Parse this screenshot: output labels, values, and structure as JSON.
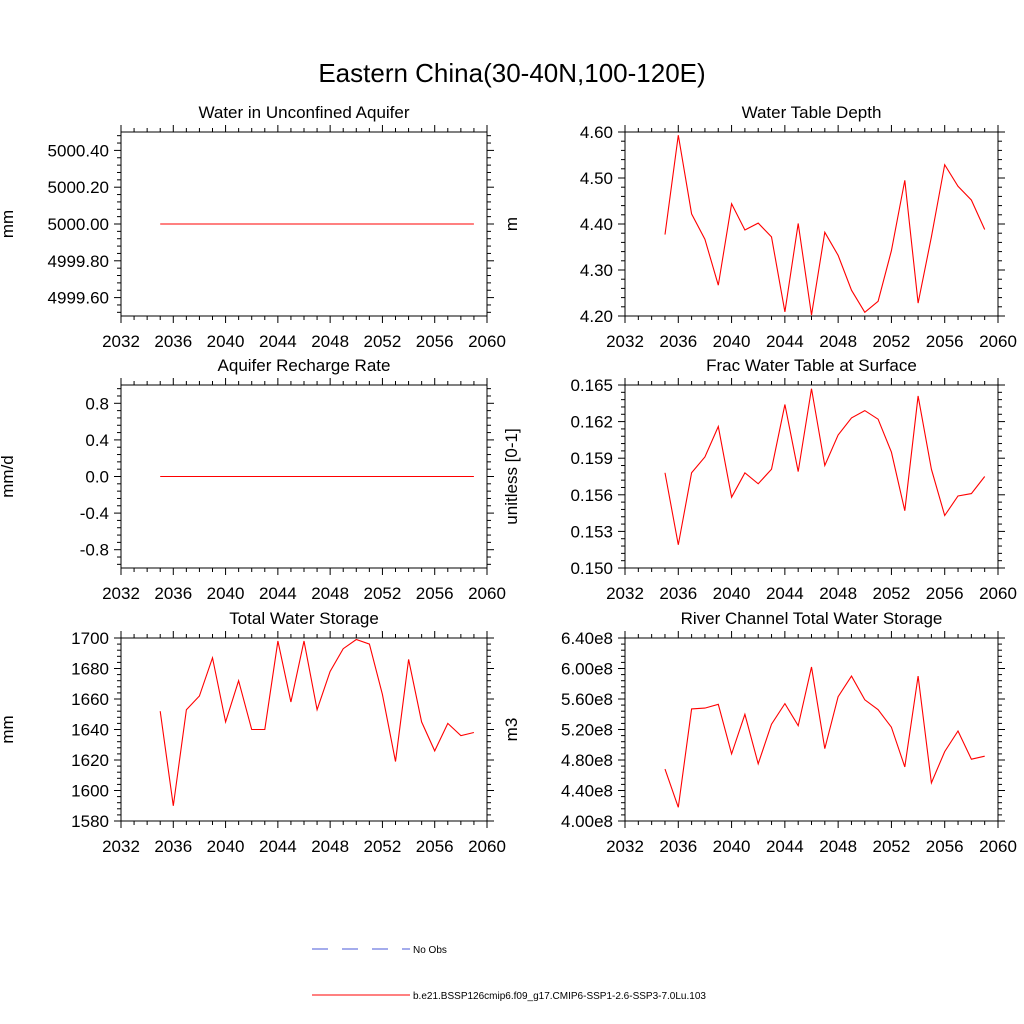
{
  "figure_title": "Eastern China(30-40N,100-120E)",
  "colors": {
    "model": "#ff0000",
    "obs": "#4a5ad8",
    "axis": "#000000"
  },
  "legend": {
    "obs_label": "No Obs",
    "model_label": "b.e21.BSSP126cmip6.f09_g17.CMIP6-SSP1-2.6-SSP3-7.0Lu.103"
  },
  "chart_data": [
    {
      "type": "line",
      "title": "Water in Unconfined Aquifer",
      "ylabel": "mm",
      "xlim": [
        2032,
        2060
      ],
      "ylim": [
        4999.5,
        5000.5
      ],
      "xticks": [
        2032,
        2036,
        2040,
        2044,
        2048,
        2052,
        2056,
        2060
      ],
      "yticks": [
        4999.6,
        4999.8,
        5000.0,
        5000.2,
        5000.4
      ],
      "ytick_labels": [
        "4999.60",
        "4999.80",
        "5000.00",
        "5000.20",
        "5000.40"
      ],
      "x": [
        2035,
        2036,
        2037,
        2038,
        2039,
        2040,
        2041,
        2042,
        2043,
        2044,
        2045,
        2046,
        2047,
        2048,
        2049,
        2050,
        2051,
        2052,
        2053,
        2054,
        2055,
        2056,
        2057,
        2058,
        2059
      ],
      "series": [
        {
          "values": [
            5000,
            5000,
            5000,
            5000,
            5000,
            5000,
            5000,
            5000,
            5000,
            5000,
            5000,
            5000,
            5000,
            5000,
            5000,
            5000,
            5000,
            5000,
            5000,
            5000,
            5000,
            5000,
            5000,
            5000,
            5000
          ]
        }
      ]
    },
    {
      "type": "line",
      "title": "Water Table Depth",
      "ylabel": "m",
      "xlim": [
        2032,
        2060
      ],
      "ylim": [
        4.2,
        4.6
      ],
      "xticks": [
        2032,
        2036,
        2040,
        2044,
        2048,
        2052,
        2056,
        2060
      ],
      "yticks": [
        4.2,
        4.3,
        4.4,
        4.5,
        4.6
      ],
      "ytick_labels": [
        "4.20",
        "4.30",
        "4.40",
        "4.50",
        "4.60"
      ],
      "x": [
        2035,
        2036,
        2037,
        2038,
        2039,
        2040,
        2041,
        2042,
        2043,
        2044,
        2045,
        2046,
        2047,
        2048,
        2049,
        2050,
        2051,
        2052,
        2053,
        2054,
        2055,
        2056,
        2057,
        2058,
        2059
      ],
      "series": [
        {
          "values": [
            4.377,
            4.593,
            4.422,
            4.367,
            4.267,
            4.444,
            4.387,
            4.402,
            4.372,
            4.209,
            4.401,
            4.202,
            4.382,
            4.332,
            4.256,
            4.208,
            4.232,
            4.342,
            4.495,
            4.228,
            4.372,
            4.529,
            4.482,
            4.452,
            4.388
          ]
        }
      ]
    },
    {
      "type": "line",
      "title": "Aquifer Recharge Rate",
      "ylabel": "mm/d",
      "xlim": [
        2032,
        2060
      ],
      "ylim": [
        -1.0,
        1.0
      ],
      "xticks": [
        2032,
        2036,
        2040,
        2044,
        2048,
        2052,
        2056,
        2060
      ],
      "yticks": [
        -0.8,
        -0.4,
        0.0,
        0.4,
        0.8
      ],
      "ytick_labels": [
        "-0.8",
        "-0.4",
        "0.0",
        "0.4",
        "0.8"
      ],
      "x": [
        2035,
        2036,
        2037,
        2038,
        2039,
        2040,
        2041,
        2042,
        2043,
        2044,
        2045,
        2046,
        2047,
        2048,
        2049,
        2050,
        2051,
        2052,
        2053,
        2054,
        2055,
        2056,
        2057,
        2058,
        2059
      ],
      "series": [
        {
          "values": [
            0,
            0,
            0,
            0,
            0,
            0,
            0,
            0,
            0,
            0,
            0,
            0,
            0,
            0,
            0,
            0,
            0,
            0,
            0,
            0,
            0,
            0,
            0,
            0,
            0
          ]
        }
      ]
    },
    {
      "type": "line",
      "title": "Frac Water Table at Surface",
      "ylabel": "unitless [0-1]",
      "xlim": [
        2032,
        2060
      ],
      "ylim": [
        0.15,
        0.165
      ],
      "xticks": [
        2032,
        2036,
        2040,
        2044,
        2048,
        2052,
        2056,
        2060
      ],
      "yticks": [
        0.15,
        0.153,
        0.156,
        0.159,
        0.162,
        0.165
      ],
      "ytick_labels": [
        "0.150",
        "0.153",
        "0.156",
        "0.159",
        "0.162",
        "0.165"
      ],
      "x": [
        2035,
        2036,
        2037,
        2038,
        2039,
        2040,
        2041,
        2042,
        2043,
        2044,
        2045,
        2046,
        2047,
        2048,
        2049,
        2050,
        2051,
        2052,
        2053,
        2054,
        2055,
        2056,
        2057,
        2058,
        2059
      ],
      "series": [
        {
          "values": [
            0.1578,
            0.1519,
            0.1578,
            0.1591,
            0.1616,
            0.1558,
            0.1578,
            0.1569,
            0.1581,
            0.1634,
            0.1579,
            0.1647,
            0.1584,
            0.1609,
            0.1623,
            0.1629,
            0.1622,
            0.1595,
            0.1547,
            0.1641,
            0.1581,
            0.1543,
            0.1559,
            0.1561,
            0.1575
          ]
        }
      ]
    },
    {
      "type": "line",
      "title": "Total Water Storage",
      "ylabel": "mm",
      "xlim": [
        2032,
        2060
      ],
      "ylim": [
        1580,
        1700
      ],
      "xticks": [
        2032,
        2036,
        2040,
        2044,
        2048,
        2052,
        2056,
        2060
      ],
      "yticks": [
        1580,
        1600,
        1620,
        1640,
        1660,
        1680,
        1700
      ],
      "ytick_labels": [
        "1580",
        "1600",
        "1620",
        "1640",
        "1660",
        "1680",
        "1700"
      ],
      "x": [
        2035,
        2036,
        2037,
        2038,
        2039,
        2040,
        2041,
        2042,
        2043,
        2044,
        2045,
        2046,
        2047,
        2048,
        2049,
        2050,
        2051,
        2052,
        2053,
        2054,
        2055,
        2056,
        2057,
        2058,
        2059
      ],
      "series": [
        {
          "values": [
            1652,
            1590,
            1653,
            1662,
            1687,
            1645,
            1672,
            1640,
            1640,
            1698,
            1658,
            1698,
            1653,
            1678,
            1693,
            1699,
            1696,
            1663,
            1619,
            1686,
            1645,
            1626,
            1644,
            1636,
            1638
          ]
        }
      ]
    },
    {
      "type": "line",
      "title": "River Channel Total Water Storage",
      "ylabel": "m3",
      "xlim": [
        2032,
        2060
      ],
      "ylim": [
        400000000,
        640000000
      ],
      "xticks": [
        2032,
        2036,
        2040,
        2044,
        2048,
        2052,
        2056,
        2060
      ],
      "yticks": [
        400000000,
        440000000,
        480000000,
        520000000,
        560000000,
        600000000,
        640000000
      ],
      "ytick_labels": [
        "4.00e8",
        "4.40e8",
        "4.80e8",
        "5.20e8",
        "5.60e8",
        "6.00e8",
        "6.40e8"
      ],
      "x": [
        2035,
        2036,
        2037,
        2038,
        2039,
        2040,
        2041,
        2042,
        2043,
        2044,
        2045,
        2046,
        2047,
        2048,
        2049,
        2050,
        2051,
        2052,
        2053,
        2054,
        2055,
        2056,
        2057,
        2058,
        2059
      ],
      "series": [
        {
          "values": [
            468000000,
            418000000,
            547000000,
            548000000,
            553000000,
            488000000,
            540000000,
            475000000,
            527000000,
            554000000,
            525000000,
            602000000,
            495000000,
            563000000,
            590000000,
            559000000,
            546000000,
            523000000,
            471000000,
            590000000,
            450000000,
            491000000,
            518000000,
            481000000,
            485000000
          ]
        }
      ]
    }
  ]
}
